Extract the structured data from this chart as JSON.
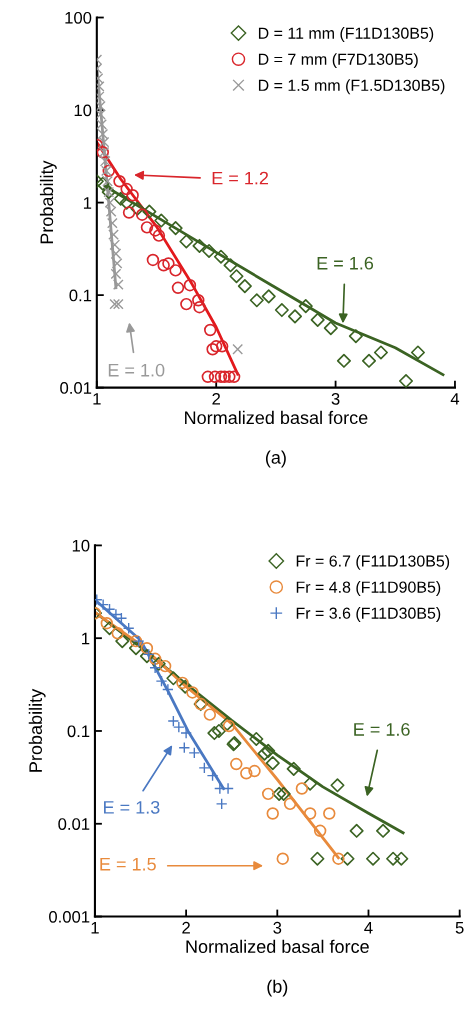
{
  "chart_data": [
    {
      "type": "scatter",
      "xlabel": "Normalized basal force",
      "ylabel": "Probability",
      "log": "y",
      "legend": "top right",
      "xlim": [
        1,
        4
      ],
      "xticks": [
        1,
        2,
        3,
        4
      ],
      "ylim": [
        0.01,
        100
      ],
      "yticks": [
        0.01,
        0.1,
        1,
        10,
        100
      ],
      "series": [
        {
          "name": "D = 11 mm (F11D130B5)",
          "color": "#3b6323",
          "marker": "diamond",
          "x": [
            1.0,
            1.05,
            1.1,
            1.2,
            1.25,
            1.34,
            1.44,
            1.54,
            1.66,
            1.75,
            1.86,
            1.94,
            2.04,
            2.12,
            2.17,
            2.24,
            2.34,
            2.44,
            2.55,
            2.66,
            2.75,
            2.85,
            2.96,
            3.07,
            3.17,
            3.28,
            3.38,
            3.59,
            3.69
          ],
          "values": [
            1.7,
            1.6,
            1.3,
            1.1,
            1.0,
            0.86,
            0.8,
            0.64,
            0.53,
            0.38,
            0.34,
            0.3,
            0.26,
            0.21,
            0.16,
            0.125,
            0.088,
            0.097,
            0.069,
            0.059,
            0.076,
            0.054,
            0.044,
            0.0195,
            0.036,
            0.0195,
            0.024,
            0.0118,
            0.024
          ]
        },
        {
          "name": "D = 7 mm (F7D130B5)",
          "color": "#d9252b",
          "marker": "circle",
          "x": [
            1.0,
            1.05,
            1.1,
            1.19,
            1.25,
            1.27,
            1.3,
            1.38,
            1.42,
            1.49,
            1.52,
            1.47,
            1.56,
            1.6,
            1.66,
            1.68,
            1.78,
            1.75,
            1.85,
            1.86,
            1.95,
            1.97,
            2.0,
            2.05,
            1.93,
            1.99,
            2.04,
            2.07,
            2.11,
            2.15
          ],
          "values": [
            4.2,
            3.5,
            2.2,
            1.7,
            1.4,
            0.78,
            1.2,
            0.74,
            0.54,
            0.5,
            0.44,
            0.24,
            0.21,
            0.22,
            0.185,
            0.12,
            0.128,
            0.08,
            0.088,
            0.074,
            0.042,
            0.026,
            0.028,
            0.028,
            0.0131,
            0.0131,
            0.0131,
            0.0131,
            0.0131,
            0.0131
          ]
        },
        {
          "name": "D = 1.5 mm (F1.5D130B5)",
          "color": "#999999",
          "marker": "cross",
          "x": [
            1.0,
            1.0,
            1.01,
            1.02,
            1.02,
            1.03,
            1.03,
            1.04,
            1.05,
            1.06,
            1.06,
            1.07,
            1.08,
            1.09,
            1.1,
            1.11,
            1.12,
            1.13,
            1.14,
            1.15,
            1.16,
            1.17,
            1.16,
            1.18,
            1.15,
            1.18,
            2.18
          ],
          "values": [
            35,
            28,
            22,
            18,
            14,
            11,
            9,
            7,
            5.5,
            4.5,
            3.5,
            2.8,
            2.2,
            1.7,
            1.3,
            1.0,
            0.8,
            0.6,
            0.45,
            0.35,
            0.28,
            0.22,
            0.17,
            0.13,
            0.08,
            0.08,
            0.026
          ]
        },
        {
          "type": "line",
          "color": "#3b6323",
          "x": [
            1.07,
            1.5,
            2.0,
            2.5,
            3.0,
            3.5,
            3.9
          ],
          "values": [
            1.5,
            0.7,
            0.29,
            0.12,
            0.05,
            0.027,
            0.0138
          ]
        },
        {
          "type": "line",
          "color": "#e3191c",
          "x": [
            1.0,
            1.2,
            1.5,
            1.8,
            2.0,
            2.18
          ],
          "values": [
            4.5,
            1.8,
            0.55,
            0.13,
            0.045,
            0.014
          ]
        },
        {
          "type": "line",
          "color": "#999999",
          "x": [
            1.0,
            1.08,
            1.16
          ],
          "values": [
            30,
            2.0,
            0.12
          ]
        }
      ],
      "annotations": [
        "E = 1.2",
        "E = 1.6",
        "E = 1.0",
        "(a)"
      ]
    },
    {
      "type": "scatter",
      "xlabel": "Normalized basal force",
      "ylabel": "Probability",
      "log": "y",
      "legend": "top right",
      "xlim": [
        1,
        5
      ],
      "xticks": [
        1,
        2,
        3,
        4,
        5
      ],
      "ylim": [
        0.001,
        10
      ],
      "yticks": [
        0.001,
        0.01,
        0.1,
        1,
        10
      ],
      "series": [
        {
          "name": "Fr = 6.7 (F11D130B5)",
          "color": "#3b6323",
          "marker": "diamond",
          "x": [
            1.0,
            1.16,
            1.3,
            1.45,
            1.57,
            1.7,
            1.86,
            1.99,
            2.16,
            2.31,
            2.45,
            2.53,
            2.77,
            2.9,
            3.02,
            2.36,
            2.52,
            2.86,
            2.95,
            3.18,
            3.07,
            3.36,
            3.66,
            3.87,
            4.16,
            3.44,
            3.77,
            4.05,
            4.27,
            4.36
          ],
          "values": [
            1.86,
            1.28,
            0.93,
            0.78,
            0.64,
            0.53,
            0.37,
            0.3,
            0.195,
            0.095,
            0.119,
            0.074,
            0.082,
            0.061,
            0.021,
            0.1,
            0.072,
            0.057,
            0.045,
            0.039,
            0.021,
            0.027,
            0.026,
            0.0084,
            0.0084,
            0.0042,
            0.0042,
            0.0042,
            0.0042,
            0.0042
          ]
        },
        {
          "name": "Fr = 4.8 (F11D90B5)",
          "color": "#e88a3c",
          "marker": "circle",
          "x": [
            1.0,
            1.13,
            1.25,
            1.45,
            1.57,
            1.66,
            1.77,
            1.96,
            2.07,
            2.16,
            2.26,
            2.47,
            2.55,
            2.66,
            2.75,
            2.9,
            2.95,
            3.14,
            3.27,
            3.36,
            3.47,
            3.57,
            3.06,
            3.67
          ],
          "values": [
            1.86,
            1.45,
            1.13,
            0.93,
            0.78,
            0.6,
            0.5,
            0.33,
            0.26,
            0.195,
            0.15,
            0.113,
            0.044,
            0.035,
            0.037,
            0.021,
            0.0129,
            0.0164,
            0.024,
            0.0129,
            0.0084,
            0.0129,
            0.0042,
            0.0042
          ]
        },
        {
          "name": "Fr = 3.6 (F11D30B5)",
          "color": "#4a78c2",
          "marker": "plus",
          "x": [
            1.02,
            1.09,
            1.16,
            1.23,
            1.29,
            1.37,
            1.48,
            1.59,
            1.66,
            1.73,
            1.8,
            1.86,
            1.92,
            2.0,
            1.98,
            2.09,
            2.2,
            2.29,
            2.37,
            2.46,
            2.39
          ],
          "values": [
            2.6,
            2.3,
            2.05,
            1.8,
            1.64,
            1.28,
            0.93,
            0.67,
            0.48,
            0.345,
            0.28,
            0.128,
            0.11,
            0.095,
            0.066,
            0.058,
            0.04,
            0.033,
            0.024,
            0.024,
            0.0164
          ]
        },
        {
          "type": "line",
          "color": "#3b6323",
          "x": [
            1.0,
            1.5,
            2.0,
            2.5,
            3.0,
            3.5,
            4.0,
            4.38
          ],
          "values": [
            1.9,
            0.8,
            0.32,
            0.13,
            0.055,
            0.025,
            0.013,
            0.008
          ]
        },
        {
          "type": "line",
          "color": "#e88a3c",
          "x": [
            1.0,
            1.5,
            2.0,
            2.5,
            3.0,
            3.67
          ],
          "values": [
            1.9,
            0.85,
            0.3,
            0.12,
            0.03,
            0.0043
          ]
        },
        {
          "type": "line",
          "color": "#4a78c2",
          "x": [
            1.0,
            1.5,
            1.8,
            2.02,
            2.41
          ],
          "values": [
            2.6,
            0.95,
            0.27,
            0.1,
            0.024
          ]
        }
      ],
      "annotations": [
        "E = 1.6",
        "E = 1.3",
        "E = 1.5",
        "(b)"
      ]
    }
  ]
}
